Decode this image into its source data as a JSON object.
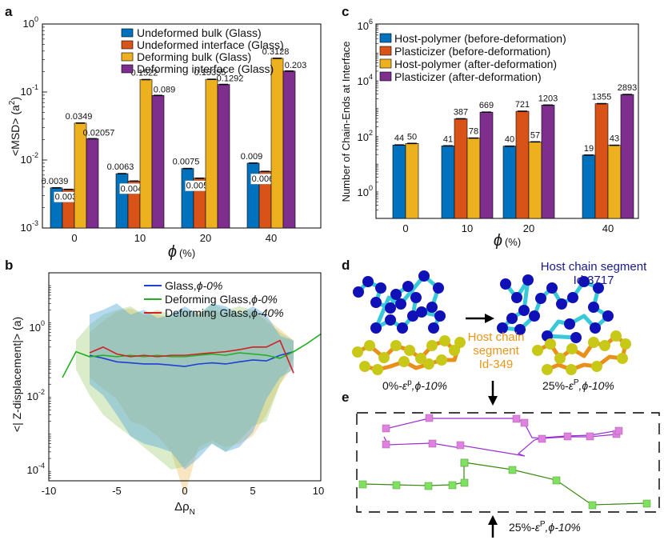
{
  "colors": {
    "blue": "#0072BD",
    "orange": "#D95319",
    "yellow": "#EDB120",
    "purple": "#7E2F8E",
    "line_blue": "#1f3fd6",
    "line_green": "#20b020",
    "line_red": "#d02020",
    "host_blue": "#1010b8",
    "bond_cyan": "#38c8d8",
    "plast_yellow": "#c8c818",
    "bond_orange": "#e8901a",
    "pink": "#e080e0",
    "lime": "#80e060",
    "line_purple": "#9b2fd0",
    "line_dkgreen": "#3a8a10",
    "text_navy": "#1a1a8c",
    "text_orange": "#e8961a"
  },
  "chart_data": [
    {
      "id": "a",
      "panel_label": "a",
      "type": "bar",
      "yscale": "log",
      "ylim": [
        0.001,
        1
      ],
      "yticks": [
        "10",
        "10",
        "10",
        "10"
      ],
      "ytick_exps": [
        "-3",
        "-2",
        "-1",
        "0"
      ],
      "ylabel_main": "<MSD> (a",
      "ylabel_sup": "2",
      "ylabel_end": ")",
      "xlabel_symbol": "ϕ",
      "xlabel_unit": "(%)",
      "categories": [
        "0",
        "10",
        "20",
        "40"
      ],
      "series": [
        {
          "name": "Undeformed bulk (Glass)",
          "values": [
            0.0039,
            0.0063,
            0.0075,
            0.009
          ],
          "labels": [
            "0.0039",
            "0.0063",
            "0.0075",
            "0.009"
          ]
        },
        {
          "name": "Undeformed interface (Glass)",
          "values": [
            0.0037,
            0.0049,
            0.0054,
            0.0068
          ],
          "labels": [
            "0.0037",
            "0.0049",
            "0.0054",
            "0.0068"
          ]
        },
        {
          "name": "Deforming bulk (Glass)",
          "values": [
            0.0349,
            0.1522,
            0.15355,
            0.3128
          ],
          "labels": [
            "0.0349",
            "0.1522",
            "0.15355",
            "0.3128"
          ]
        },
        {
          "name": "Deforming interface (Glass)",
          "values": [
            0.02057,
            0.089,
            0.1292,
            0.203
          ],
          "labels": [
            "0.02057",
            "0.089",
            "0.1292",
            "0.203"
          ]
        }
      ]
    },
    {
      "id": "c",
      "panel_label": "c",
      "type": "bar",
      "yscale": "log",
      "ylim": [
        0.1,
        1000000
      ],
      "yticks": [
        "10",
        "10",
        "10",
        "10"
      ],
      "ytick_exps": [
        "0",
        "2",
        "4",
        "6"
      ],
      "ylabel": "Number of Chain-Ends at Interface",
      "xlabel_symbol": "ϕ",
      "xlabel_unit": "(%)",
      "categories": [
        "0",
        "10",
        "20",
        "40"
      ],
      "series": [
        {
          "name": "Host-polymer (before-deformation)",
          "values": [
            44,
            41,
            40,
            19
          ],
          "labels": [
            "44",
            "41",
            "40",
            "19"
          ]
        },
        {
          "name": "Plasticizer (before-deformation)",
          "values": [
            null,
            387,
            721,
            1355
          ],
          "labels": [
            "",
            "387",
            "721",
            "1355"
          ]
        },
        {
          "name": "Host-polymer (after-deformation)",
          "values": [
            50,
            78,
            57,
            43
          ],
          "labels": [
            "50",
            "78",
            "57",
            "43"
          ]
        },
        {
          "name": "Plasticizer (after-deformation)",
          "values": [
            null,
            669,
            1203,
            2893
          ],
          "labels": [
            "",
            "669",
            "1203",
            "2893"
          ]
        }
      ]
    },
    {
      "id": "b",
      "panel_label": "b",
      "type": "line",
      "yscale": "log",
      "xlim": [
        -10,
        10
      ],
      "ylim": [
        5e-05,
        20
      ],
      "xticks": [
        "-10",
        "-5",
        "0",
        "5",
        "10"
      ],
      "yticks": [
        "10",
        "10",
        "10"
      ],
      "ytick_exps": [
        "-4",
        "-2",
        "0"
      ],
      "ylabel": "<| Z-displacement|> (a)",
      "xlabel_main": "Δρ",
      "xlabel_sub": "N",
      "legend": [
        "Glass,",
        "Deforming Glass,",
        "Deforming Glass,"
      ],
      "legend_phi": [
        "ϕ-0%",
        "ϕ-0%",
        "ϕ-40%"
      ],
      "series": [
        {
          "name": "Glass, ϕ-0%",
          "x": [
            -7,
            -6,
            -5,
            -4,
            -3,
            -2,
            -1,
            0,
            1,
            2,
            3,
            4,
            5,
            6,
            7,
            8
          ],
          "y": [
            0.12,
            0.1,
            0.08,
            0.075,
            0.07,
            0.07,
            0.065,
            0.06,
            0.07,
            0.075,
            0.07,
            0.08,
            0.09,
            0.085,
            0.12,
            0.15
          ]
        },
        {
          "name": "Deforming Glass, ϕ-0%",
          "x": [
            -9,
            -8,
            -7,
            -6,
            -5,
            -4,
            -3,
            -2,
            -1,
            0,
            1,
            2,
            3,
            4,
            5,
            6,
            7,
            8,
            9,
            10
          ],
          "y": [
            0.03,
            0.15,
            0.11,
            0.12,
            0.11,
            0.12,
            0.11,
            0.12,
            0.11,
            0.11,
            0.12,
            0.13,
            0.12,
            0.14,
            0.13,
            0.12,
            0.1,
            0.15,
            0.25,
            0.45
          ]
        },
        {
          "name": "Deforming Glass, ϕ-40%",
          "x": [
            -7,
            -6,
            -5,
            -4,
            -3,
            -2,
            -1,
            0,
            1,
            2,
            3,
            4,
            5,
            6,
            7,
            8
          ],
          "y": [
            0.14,
            0.2,
            0.13,
            0.11,
            0.12,
            0.11,
            0.12,
            0.12,
            0.13,
            0.14,
            0.15,
            0.17,
            0.2,
            0.2,
            0.3,
            0.04
          ]
        }
      ],
      "bands": [
        {
          "x": [
            -7,
            -6,
            -5,
            -4,
            -3,
            -2,
            -1,
            0,
            1,
            2,
            3,
            4,
            5,
            6,
            7,
            8
          ],
          "upper": [
            1.5,
            2.0,
            3.0,
            1.5,
            2.0,
            1.2,
            1.5,
            2.5,
            1.5,
            3.0,
            2.5,
            1.5,
            2.5,
            1.5,
            0.4,
            0.3
          ],
          "lower": [
            0.02,
            0.01,
            0.003,
            0.0008,
            0.0005,
            0.0004,
            0.0003,
            0.0001,
            0.0002,
            0.0005,
            0.0003,
            0.0004,
            0.001,
            0.008,
            0.03,
            0.05
          ]
        },
        {
          "x": [
            -8,
            -7,
            -6,
            -5,
            -4,
            -3,
            -2,
            -1,
            0,
            1,
            2,
            3,
            4,
            5,
            6,
            7,
            8
          ],
          "upper": [
            0.3,
            0.8,
            1.5,
            2.0,
            2.5,
            1.5,
            2.0,
            1.5,
            2.0,
            1.5,
            3.0,
            2.0,
            2.5,
            2.0,
            1.0,
            0.5,
            0.3
          ],
          "lower": [
            0.05,
            0.01,
            0.003,
            0.0015,
            0.0008,
            0.0004,
            0.0002,
            0.0001,
            0.00012,
            0.0003,
            0.0005,
            0.0003,
            0.0006,
            0.0015,
            0.002,
            0.02,
            0.1
          ]
        },
        {
          "x": [
            -7,
            -6,
            -5,
            -4,
            -3,
            -2,
            -1,
            0,
            1,
            2,
            3,
            4,
            5,
            6,
            7,
            8
          ],
          "upper": [
            0.5,
            1.0,
            1.8,
            2.2,
            1.5,
            1.5,
            1.2,
            1.5,
            1.8,
            2.0,
            1.5,
            1.5,
            1.8,
            1.2,
            0.6,
            0.3
          ],
          "lower": [
            0.03,
            0.015,
            0.008,
            0.002,
            0.0015,
            0.0008,
            0.0003,
            2e-05,
            0.0004,
            0.0006,
            0.0004,
            0.0005,
            0.0008,
            0.003,
            0.02,
            0.06
          ]
        }
      ]
    }
  ],
  "panel_d": {
    "label": "d",
    "host_label_line1": "Host chain segment",
    "host_label_line2": "Id-3717",
    "plast_label_line1": "Host chain",
    "plast_label_line2": "segment",
    "plast_label_line3": "Id-349",
    "caption_left_pct": "0%-",
    "caption_left_eps": "ε",
    "caption_left_sup": "p",
    "caption_left_tail": ",ϕ-10%",
    "caption_right_pct": "25%-",
    "caption_right_eps": "ε",
    "caption_right_sup": "P",
    "caption_right_tail": ",ϕ-10%"
  },
  "panel_e": {
    "label": "e",
    "caption_pct": "25%-",
    "caption_eps": "ε",
    "caption_sup": "P",
    "caption_tail": ",ϕ-10%"
  }
}
